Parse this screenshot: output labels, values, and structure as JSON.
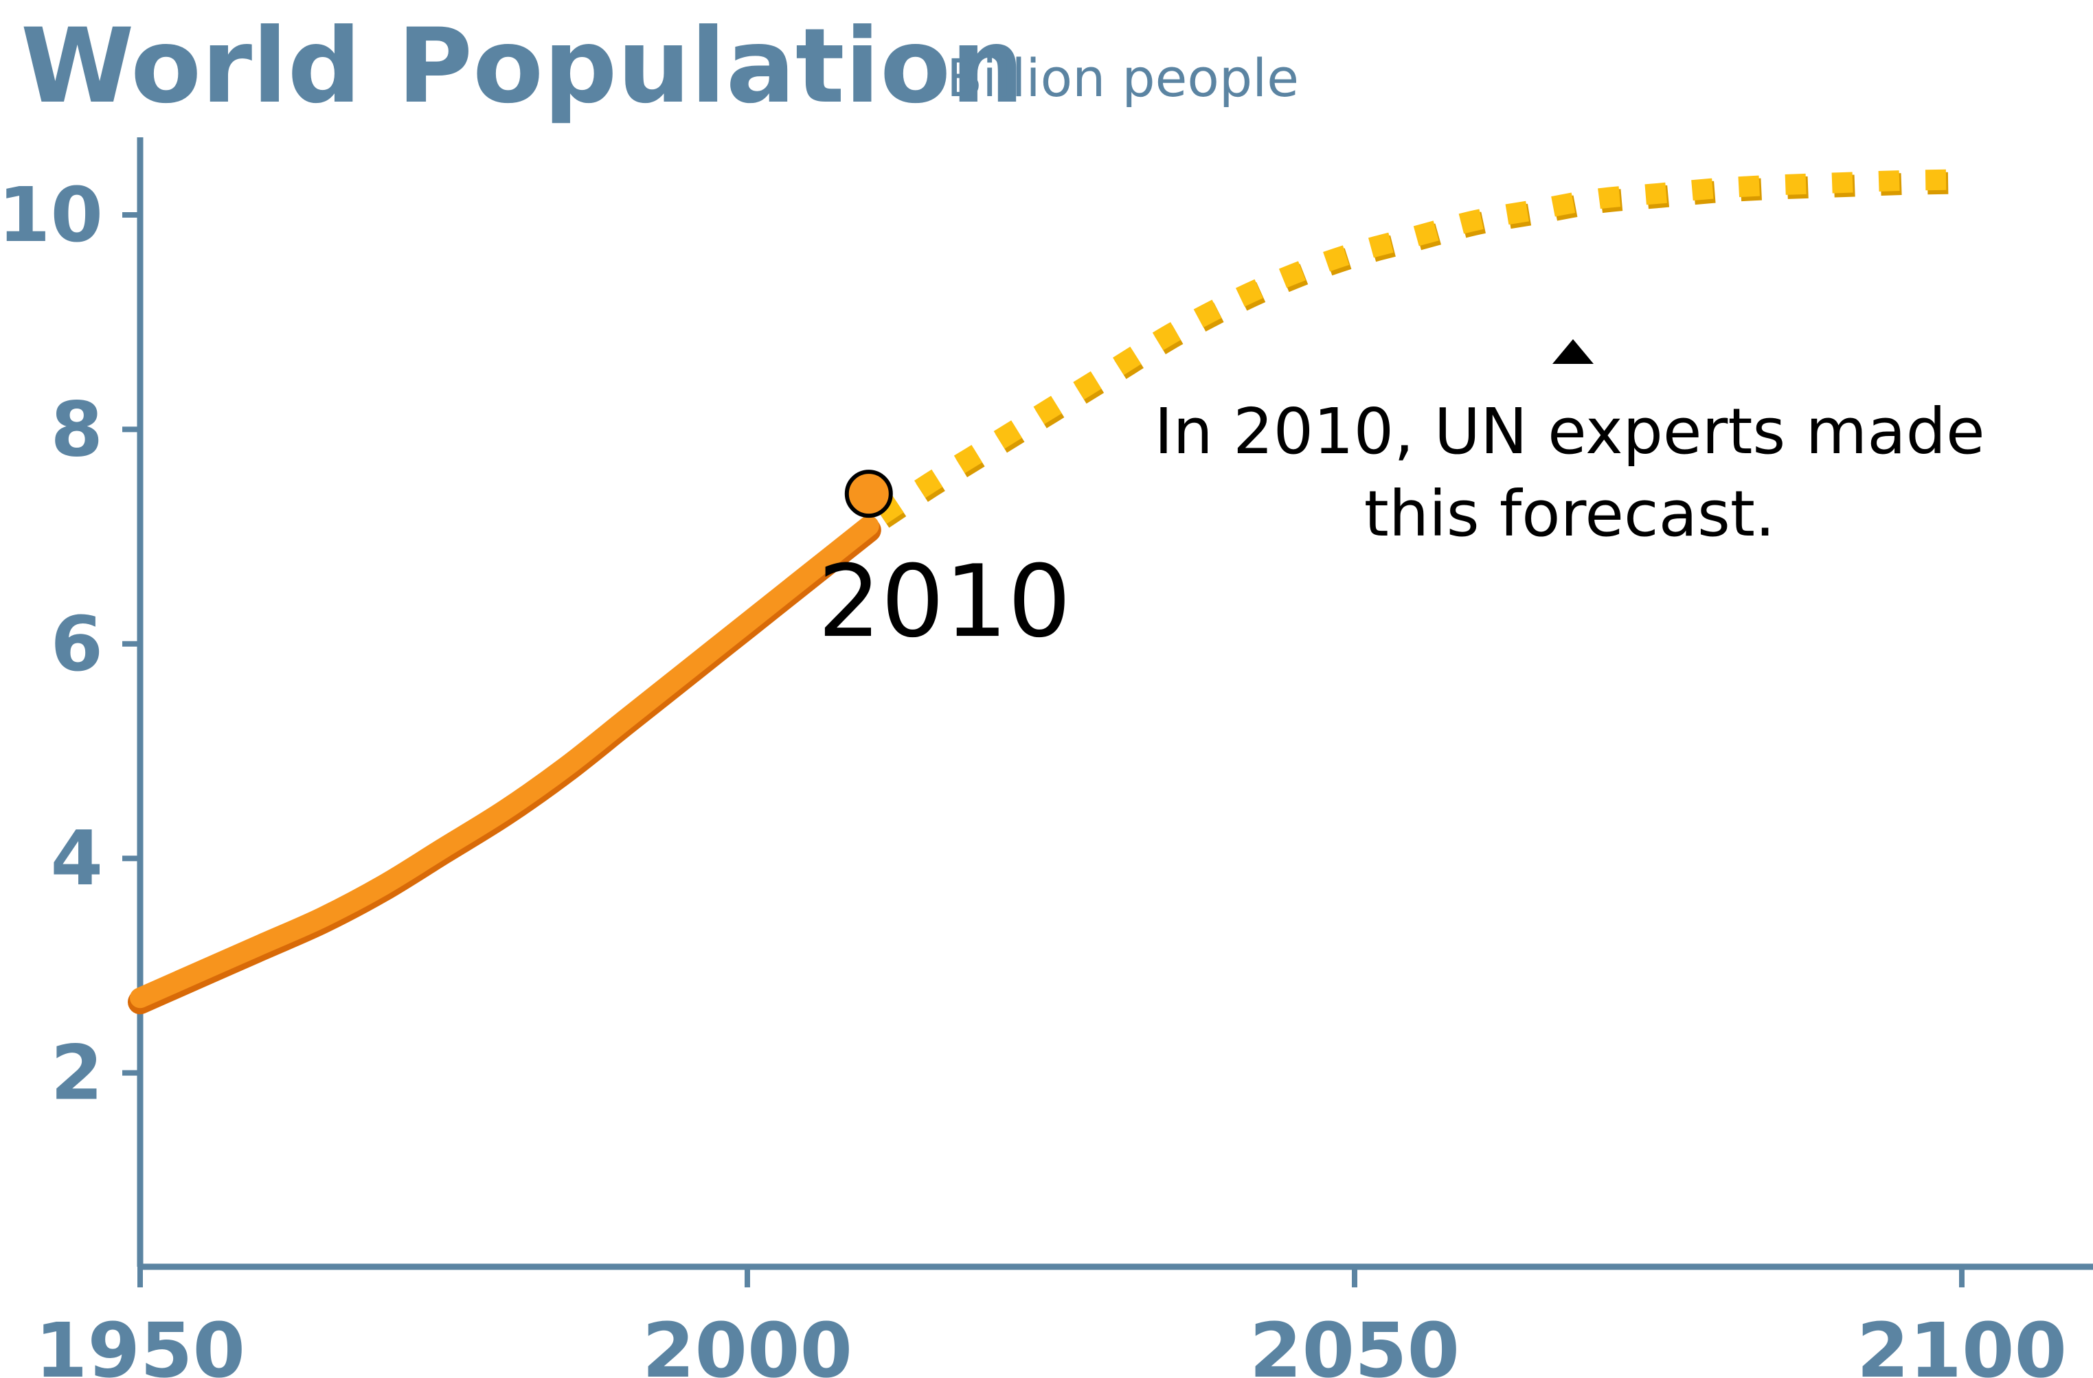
{
  "chart_data": {
    "type": "line",
    "title": "World Population",
    "subtitle": "Billion people",
    "xlim": [
      1950,
      2110
    ],
    "ylim": [
      0,
      10.7
    ],
    "x_ticks": [
      1950,
      2000,
      2050,
      2100
    ],
    "y_ticks": [
      2,
      4,
      6,
      8,
      10
    ],
    "x_tick_labels": [
      "1950",
      "2000",
      "2050",
      "2100"
    ],
    "y_tick_labels": [
      "2",
      "4",
      "6",
      "8",
      "10"
    ],
    "grid": false,
    "series": [
      {
        "style": "solid",
        "color": "#F7941D",
        "x": [
          1950,
          1955,
          1960,
          1965,
          1970,
          1975,
          1980,
          1985,
          1990,
          1995,
          2000,
          2005,
          2010
        ],
        "y": [
          2.7,
          2.95,
          3.2,
          3.45,
          3.75,
          4.1,
          4.45,
          4.85,
          5.3,
          5.75,
          6.2,
          6.65,
          7.1
        ]
      },
      {
        "style": "dotted",
        "color": "#FDC010",
        "x": [
          2011,
          2015,
          2020,
          2025,
          2030,
          2035,
          2040,
          2045,
          2050,
          2055,
          2060,
          2065,
          2070,
          2075,
          2080,
          2085,
          2090,
          2095,
          2100
        ],
        "y": [
          7.2,
          7.5,
          7.85,
          8.2,
          8.55,
          8.9,
          9.2,
          9.45,
          9.65,
          9.8,
          9.95,
          10.05,
          10.15,
          10.2,
          10.25,
          10.28,
          10.3,
          10.32,
          10.33
        ]
      }
    ],
    "markers": [
      {
        "x": 2010,
        "y": 7.4,
        "label": "2010"
      }
    ],
    "annotations": [
      {
        "lines": [
          "In 2010, UN experts made",
          "this forecast."
        ],
        "x": 2068,
        "y": 8.55
      }
    ],
    "colors": {
      "axis": "#5B84A2",
      "title": "#5B84A2",
      "history": "#F7941D",
      "history_edge": "#D86A08",
      "forecast": "#FDC010",
      "forecast_edge": "#D99A00",
      "marker_fill": "#F7941D",
      "text": "#000000"
    }
  }
}
